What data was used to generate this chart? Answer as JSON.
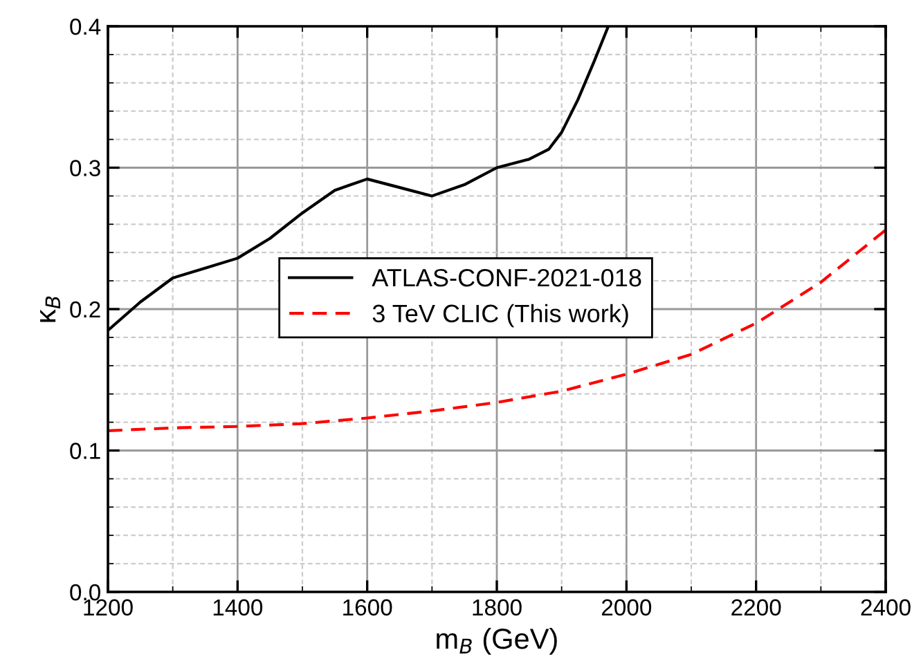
{
  "chart_data": {
    "type": "line",
    "xlabel": "m$_{B}$ (GeV)",
    "ylabel": "κ$_{B}$",
    "xlim": [
      1200,
      2400
    ],
    "ylim": [
      0.0,
      0.4
    ],
    "xticks": [
      1200,
      1400,
      1600,
      1800,
      2000,
      2200,
      2400
    ],
    "yticks": [
      {
        "value": 0.0,
        "label": "0.0"
      },
      0.1,
      0.2,
      0.3,
      0.4
    ],
    "grid": true,
    "legend": "center",
    "series": [
      {
        "name": "ATLAS-CONF-2021-018",
        "color": "#000000",
        "line_style": "solid",
        "x": [
          1200,
          1250,
          1300,
          1350,
          1400,
          1450,
          1500,
          1550,
          1600,
          1650,
          1700,
          1750,
          1800,
          1850,
          1880,
          1900,
          1925,
          1950,
          1972
        ],
        "values": [
          0.185,
          0.205,
          0.222,
          0.229,
          0.236,
          0.25,
          0.268,
          0.284,
          0.292,
          0.286,
          0.28,
          0.288,
          0.3,
          0.306,
          0.313,
          0.325,
          0.348,
          0.375,
          0.4
        ]
      },
      {
        "name": "3 TeV CLIC (This work)",
        "color": "#ff0000",
        "line_style": "dashed",
        "x": [
          1200,
          1300,
          1400,
          1500,
          1600,
          1700,
          1800,
          1900,
          2000,
          2100,
          2200,
          2300,
          2400
        ],
        "values": [
          0.114,
          0.116,
          0.117,
          0.119,
          0.123,
          0.128,
          0.134,
          0.142,
          0.154,
          0.168,
          0.19,
          0.219,
          0.256
        ]
      }
    ]
  }
}
